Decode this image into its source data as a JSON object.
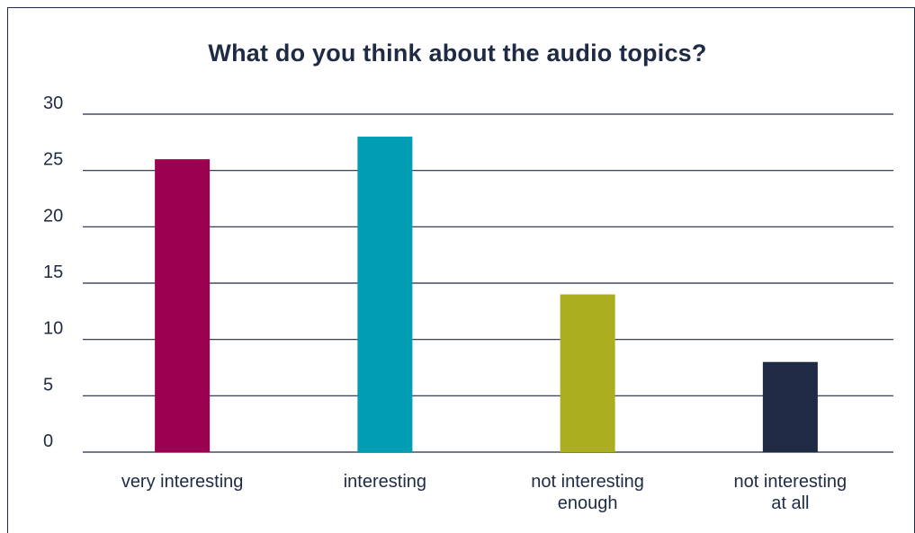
{
  "chart_data": {
    "type": "bar",
    "title": "What do you think about the audio topics?",
    "categories": [
      "very interesting",
      "interesting",
      "not interesting enough",
      "not interesting at all"
    ],
    "category_lines": [
      [
        "very interesting"
      ],
      [
        "interesting"
      ],
      [
        "not interesting",
        "enough"
      ],
      [
        "not interesting",
        "at all"
      ]
    ],
    "values": [
      26,
      28,
      14,
      8
    ],
    "colors": [
      "#9b0051",
      "#009db5",
      "#abae1f",
      "#1f2a44"
    ],
    "xlabel": "",
    "ylabel": "",
    "ylim": [
      0,
      30
    ],
    "yticks": [
      0,
      5,
      10,
      15,
      20,
      25,
      30
    ],
    "grid": true,
    "legend": "none"
  }
}
